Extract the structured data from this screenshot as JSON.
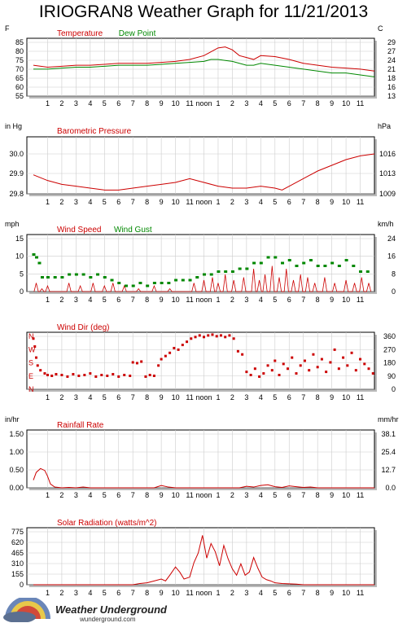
{
  "title": "IRIOGRAN8 Weather Graph for 11/21/2013",
  "hour_labels": [
    "1",
    "2",
    "3",
    "4",
    "5",
    "6",
    "7",
    "8",
    "9",
    "10",
    "11",
    "noon",
    "1",
    "2",
    "3",
    "4",
    "5",
    "6",
    "7",
    "8",
    "9",
    "10",
    "11"
  ],
  "colors": {
    "red": "#cc0000",
    "green": "#008800",
    "grid": "#cccccc"
  },
  "footer": {
    "brand": "Weather Underground",
    "url": "wunderground.com",
    "logo_icon": "weather-underground-logo-icon"
  },
  "chart_data": [
    {
      "id": "temperature",
      "type": "line",
      "legend": [
        "Temperature",
        "Dew Point"
      ],
      "left_unit": "F",
      "right_unit": "C",
      "left_ticks": [
        "85",
        "80",
        "75",
        "70",
        "65",
        "60",
        "55"
      ],
      "right_ticks": [
        "29",
        "27",
        "24",
        "21",
        "18",
        "16",
        "13"
      ],
      "ylim": [
        55,
        85
      ],
      "x": [
        0,
        1,
        2,
        3,
        4,
        5,
        6,
        7,
        8,
        9,
        10,
        11,
        12,
        12.5,
        13,
        13.5,
        14,
        14.5,
        15,
        15.5,
        16,
        17,
        18,
        19,
        20,
        21,
        22,
        23,
        24
      ],
      "series": [
        {
          "name": "Temperature",
          "color": "red",
          "values": [
            71,
            70,
            70.5,
            71,
            71,
            71.5,
            72,
            72,
            72,
            72.5,
            73,
            74,
            76,
            78,
            80,
            80.5,
            79,
            76,
            75,
            74,
            76,
            75.5,
            74,
            72,
            71,
            70,
            69.5,
            69,
            68
          ]
        },
        {
          "name": "Dew Point",
          "color": "green",
          "values": [
            69,
            69,
            69.5,
            70,
            70,
            70.5,
            71,
            71,
            71,
            71.5,
            72,
            72.5,
            73,
            74,
            74,
            73.5,
            73,
            72,
            71,
            71,
            72,
            71,
            70,
            69,
            68,
            67,
            67,
            66,
            65
          ]
        }
      ]
    },
    {
      "id": "pressure",
      "type": "line",
      "legend": [
        "Barometric Pressure"
      ],
      "left_unit": "in Hg",
      "right_unit": "hPa",
      "left_ticks": [
        "30.0",
        "29.9",
        "29.8"
      ],
      "right_ticks": [
        "1016",
        "1013",
        "1009"
      ],
      "ylim": [
        29.8,
        30.1
      ],
      "x": [
        0,
        1,
        2,
        3,
        4,
        5,
        6,
        7,
        8,
        9,
        10,
        11,
        12,
        13,
        14,
        15,
        16,
        17,
        17.5,
        18,
        19,
        20,
        21,
        22,
        23,
        24
      ],
      "series": [
        {
          "name": "Barometric Pressure",
          "color": "red",
          "values": [
            29.9,
            29.87,
            29.85,
            29.84,
            29.83,
            29.82,
            29.82,
            29.83,
            29.84,
            29.85,
            29.86,
            29.88,
            29.86,
            29.84,
            29.83,
            29.83,
            29.84,
            29.83,
            29.82,
            29.84,
            29.88,
            29.92,
            29.95,
            29.98,
            30.0,
            30.01
          ]
        }
      ]
    },
    {
      "id": "wind",
      "type": "line",
      "legend": [
        "Wind Speed",
        "Wind Gust"
      ],
      "left_unit": "mph",
      "right_unit": "km/h",
      "left_ticks": [
        "15",
        "10",
        "5",
        "0"
      ],
      "right_ticks": [
        "24",
        "16",
        "8",
        "0"
      ],
      "ylim": [
        0,
        20
      ],
      "speed_peaks": [
        [
          0.2,
          3
        ],
        [
          0.6,
          1
        ],
        [
          1.0,
          2
        ],
        [
          2.5,
          3
        ],
        [
          3.3,
          2
        ],
        [
          4.2,
          3
        ],
        [
          5.0,
          2
        ],
        [
          5.6,
          3
        ],
        [
          6.4,
          2
        ],
        [
          7.4,
          1
        ],
        [
          8.5,
          2
        ],
        [
          9.6,
          1
        ],
        [
          11.3,
          3
        ],
        [
          12.0,
          4
        ],
        [
          12.6,
          5
        ],
        [
          13.0,
          3
        ],
        [
          13.5,
          6
        ],
        [
          14.1,
          4
        ],
        [
          14.8,
          5
        ],
        [
          15.5,
          8
        ],
        [
          15.9,
          4
        ],
        [
          16.3,
          6
        ],
        [
          16.8,
          9
        ],
        [
          17.3,
          5
        ],
        [
          17.8,
          8
        ],
        [
          18.3,
          4
        ],
        [
          18.8,
          6
        ],
        [
          19.3,
          5
        ],
        [
          19.8,
          3
        ],
        [
          20.5,
          5
        ],
        [
          21.2,
          3
        ],
        [
          22.0,
          4
        ],
        [
          22.6,
          3
        ],
        [
          23.1,
          5
        ],
        [
          23.6,
          3
        ]
      ],
      "gust_points": [
        [
          0.0,
          13
        ],
        [
          0.2,
          12
        ],
        [
          0.4,
          10
        ],
        [
          0.6,
          5
        ],
        [
          1.0,
          5
        ],
        [
          1.5,
          5
        ],
        [
          2.0,
          5
        ],
        [
          2.5,
          6
        ],
        [
          3.0,
          6
        ],
        [
          3.5,
          6
        ],
        [
          4.0,
          5
        ],
        [
          4.5,
          6
        ],
        [
          5.0,
          5
        ],
        [
          5.5,
          4
        ],
        [
          6.0,
          3
        ],
        [
          6.5,
          2
        ],
        [
          7.0,
          2
        ],
        [
          7.5,
          3
        ],
        [
          8.0,
          2
        ],
        [
          8.5,
          3
        ],
        [
          9.0,
          3
        ],
        [
          9.5,
          3
        ],
        [
          10.0,
          4
        ],
        [
          10.5,
          4
        ],
        [
          11.0,
          4
        ],
        [
          11.5,
          5
        ],
        [
          12.0,
          6
        ],
        [
          12.5,
          6
        ],
        [
          13.0,
          7
        ],
        [
          13.5,
          7
        ],
        [
          14.0,
          7
        ],
        [
          14.5,
          8
        ],
        [
          15.0,
          8
        ],
        [
          15.5,
          10
        ],
        [
          16.0,
          10
        ],
        [
          16.5,
          12
        ],
        [
          17.0,
          12
        ],
        [
          17.5,
          10
        ],
        [
          18.0,
          11
        ],
        [
          18.5,
          9
        ],
        [
          19.0,
          10
        ],
        [
          19.5,
          11
        ],
        [
          20.0,
          9
        ],
        [
          20.5,
          9
        ],
        [
          21.0,
          10
        ],
        [
          21.5,
          9
        ],
        [
          22.0,
          11
        ],
        [
          22.5,
          9
        ],
        [
          23.0,
          7
        ],
        [
          23.5,
          7
        ]
      ]
    },
    {
      "id": "wind_dir",
      "type": "scatter",
      "legend": [
        "Wind Dir (deg)"
      ],
      "left_labels": [
        "N",
        "W",
        "S",
        "E",
        "N"
      ],
      "right_ticks": [
        "360",
        "270",
        "180",
        "90",
        "0"
      ],
      "ylim": [
        0,
        360
      ],
      "points": [
        [
          0.0,
          320
        ],
        [
          0.1,
          270
        ],
        [
          0.2,
          200
        ],
        [
          0.3,
          150
        ],
        [
          0.5,
          120
        ],
        [
          0.8,
          100
        ],
        [
          1.0,
          90
        ],
        [
          1.3,
          85
        ],
        [
          1.6,
          95
        ],
        [
          2.0,
          90
        ],
        [
          2.4,
          80
        ],
        [
          2.8,
          95
        ],
        [
          3.2,
          85
        ],
        [
          3.6,
          90
        ],
        [
          4.0,
          100
        ],
        [
          4.4,
          80
        ],
        [
          4.8,
          90
        ],
        [
          5.2,
          85
        ],
        [
          5.6,
          95
        ],
        [
          6.0,
          80
        ],
        [
          6.4,
          90
        ],
        [
          6.8,
          85
        ],
        [
          7.0,
          170
        ],
        [
          7.3,
          165
        ],
        [
          7.6,
          175
        ],
        [
          7.9,
          80
        ],
        [
          8.2,
          90
        ],
        [
          8.5,
          85
        ],
        [
          8.8,
          150
        ],
        [
          9.0,
          190
        ],
        [
          9.3,
          210
        ],
        [
          9.6,
          230
        ],
        [
          9.9,
          260
        ],
        [
          10.2,
          250
        ],
        [
          10.5,
          280
        ],
        [
          10.8,
          300
        ],
        [
          11.1,
          320
        ],
        [
          11.4,
          330
        ],
        [
          11.7,
          340
        ],
        [
          12.0,
          330
        ],
        [
          12.3,
          340
        ],
        [
          12.6,
          345
        ],
        [
          12.9,
          335
        ],
        [
          13.2,
          340
        ],
        [
          13.5,
          330
        ],
        [
          13.8,
          340
        ],
        [
          14.1,
          320
        ],
        [
          14.4,
          240
        ],
        [
          14.7,
          220
        ],
        [
          15.0,
          110
        ],
        [
          15.3,
          90
        ],
        [
          15.6,
          130
        ],
        [
          15.9,
          80
        ],
        [
          16.2,
          100
        ],
        [
          16.5,
          150
        ],
        [
          16.8,
          120
        ],
        [
          17.0,
          180
        ],
        [
          17.3,
          90
        ],
        [
          17.6,
          160
        ],
        [
          17.9,
          130
        ],
        [
          18.2,
          200
        ],
        [
          18.5,
          100
        ],
        [
          18.8,
          150
        ],
        [
          19.1,
          180
        ],
        [
          19.4,
          120
        ],
        [
          19.7,
          220
        ],
        [
          20.0,
          140
        ],
        [
          20.3,
          190
        ],
        [
          20.6,
          110
        ],
        [
          20.9,
          170
        ],
        [
          21.2,
          250
        ],
        [
          21.5,
          130
        ],
        [
          21.8,
          200
        ],
        [
          22.1,
          150
        ],
        [
          22.4,
          230
        ],
        [
          22.7,
          120
        ],
        [
          23.0,
          190
        ],
        [
          23.3,
          160
        ],
        [
          23.6,
          130
        ],
        [
          23.9,
          100
        ]
      ]
    },
    {
      "id": "rain",
      "type": "line",
      "legend": [
        "Rainfall Rate"
      ],
      "left_unit": "in/hr",
      "right_unit": "mm/hr",
      "left_ticks": [
        "1.50",
        "1.00",
        "0.50",
        "0.00"
      ],
      "right_ticks": [
        "38.1",
        "25.4",
        "12.7",
        "0.0"
      ],
      "ylim": [
        0,
        1.5
      ],
      "x": [
        0,
        0.2,
        0.5,
        0.8,
        1.0,
        1.2,
        1.5,
        2.0,
        2.5,
        3.0,
        3.5,
        4.0,
        8.5,
        9.0,
        9.5,
        10.0,
        14.5,
        15.0,
        15.5,
        16.0,
        16.5,
        17.0,
        17.5,
        18.0,
        18.5,
        19.0,
        19.5,
        20.0,
        24
      ],
      "series": [
        {
          "name": "Rainfall Rate",
          "color": "red",
          "values": [
            0.2,
            0.4,
            0.5,
            0.45,
            0.3,
            0.1,
            0.02,
            0.0,
            0.01,
            0.0,
            0.02,
            0.0,
            0.0,
            0.06,
            0.02,
            0.0,
            0.0,
            0.04,
            0.02,
            0.06,
            0.08,
            0.03,
            0.01,
            0.05,
            0.03,
            0.01,
            0.02,
            0.0,
            0.0
          ]
        }
      ]
    },
    {
      "id": "solar",
      "type": "line",
      "legend": [
        "Solar Radiation (watts/m^2)"
      ],
      "left_ticks": [
        "775",
        "620",
        "465",
        "310",
        "155",
        "0"
      ],
      "ylim": [
        0,
        900
      ],
      "x": [
        0,
        7.0,
        7.5,
        8.0,
        8.5,
        9.0,
        9.3,
        9.6,
        10.0,
        10.3,
        10.6,
        11.0,
        11.3,
        11.6,
        11.9,
        12.2,
        12.5,
        12.8,
        13.1,
        13.4,
        13.7,
        14.0,
        14.3,
        14.6,
        14.9,
        15.2,
        15.5,
        15.8,
        16.1,
        16.4,
        16.7,
        17.0,
        17.5,
        18.0,
        18.5,
        19.0,
        24
      ],
      "series": [
        {
          "name": "Solar Radiation",
          "color": "red",
          "values": [
            0,
            0,
            20,
            30,
            60,
            90,
            60,
            150,
            280,
            200,
            90,
            120,
            350,
            500,
            780,
            420,
            650,
            520,
            300,
            620,
            410,
            250,
            150,
            330,
            150,
            200,
            430,
            260,
            120,
            80,
            60,
            30,
            20,
            15,
            10,
            0,
            0
          ]
        }
      ]
    }
  ]
}
